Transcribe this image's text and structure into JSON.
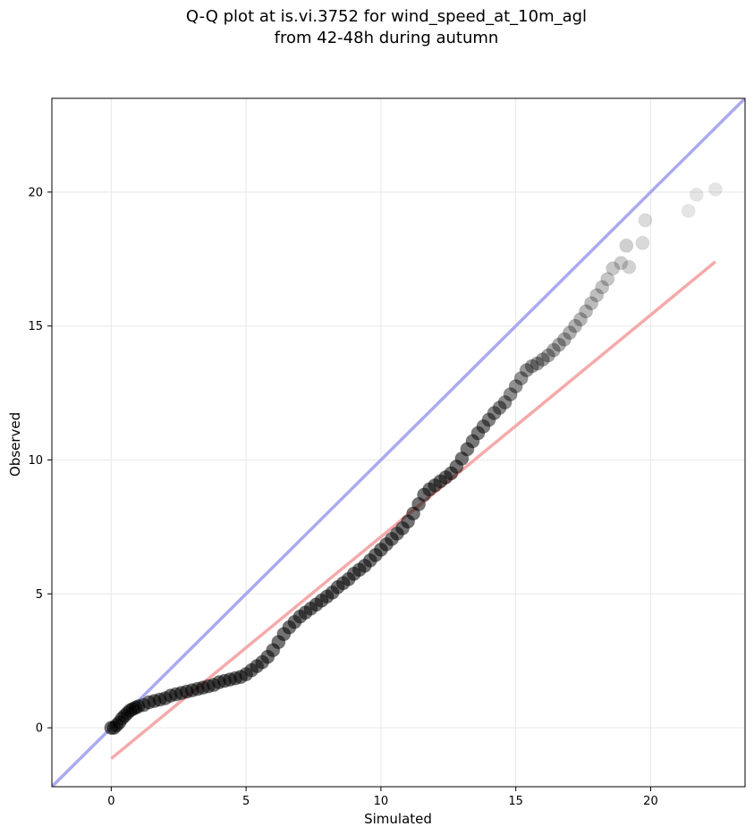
{
  "chart_data": {
    "type": "scatter",
    "title_lines": [
      "Q-Q plot at is.vi.3752 for wind_speed_at_10m_agl",
      "from 42-48h during autumn"
    ],
    "xlabel": "Simulated",
    "ylabel": "Observed",
    "xlim": [
      -2.2,
      23.5
    ],
    "ylim": [
      -2.2,
      23.5
    ],
    "xticks": [
      0,
      5,
      10,
      15,
      20
    ],
    "yticks": [
      0,
      5,
      10,
      15,
      20
    ],
    "grid": true,
    "colors": {
      "points": "#000000",
      "identity_line": "#aaaaf0",
      "fit_line": "#f5aaaa",
      "grid": "#ebebeb",
      "frame": "#000000"
    },
    "identity_line": {
      "x": [
        -2.2,
        23.5
      ],
      "y": [
        -2.2,
        23.5
      ]
    },
    "fit_line": {
      "x": [
        0.0,
        22.4
      ],
      "y": [
        -1.15,
        17.4
      ]
    },
    "series": [
      {
        "x": [
          0.0,
          0.1,
          0.2,
          0.3,
          0.4,
          0.5,
          0.6,
          0.7,
          0.8,
          0.9,
          1.0,
          1.2,
          1.4,
          1.6,
          1.8,
          2.0,
          2.2,
          2.4,
          2.6,
          2.8,
          3.0,
          3.2,
          3.4,
          3.6,
          3.8,
          4.0,
          4.2,
          4.4,
          4.6,
          4.8,
          5.0,
          5.2,
          5.4,
          5.6,
          5.8,
          6.0,
          6.2,
          6.4,
          6.6,
          6.8,
          7.0,
          7.2,
          7.4,
          7.6,
          7.8,
          8.0,
          8.2,
          8.4,
          8.6,
          8.8,
          9.0,
          9.2,
          9.4,
          9.6,
          9.8,
          10.0,
          10.2,
          10.4,
          10.6,
          10.8,
          11.0,
          11.2,
          11.4,
          11.6,
          11.8,
          12.0,
          12.2,
          12.4,
          12.6,
          12.8,
          13.0,
          13.2,
          13.4,
          13.6,
          13.8,
          14.0,
          14.2,
          14.4,
          14.6,
          14.8,
          15.0,
          15.2,
          15.4,
          15.6,
          15.8,
          16.0,
          16.2,
          16.4,
          16.6,
          16.8,
          17.0,
          17.2,
          17.4,
          17.6,
          17.8,
          18.0,
          18.2,
          18.4,
          18.6,
          18.9,
          19.1,
          19.2,
          19.7,
          19.8,
          21.4,
          21.7,
          22.4
        ],
        "y": [
          0.0,
          0.0,
          0.1,
          0.2,
          0.35,
          0.45,
          0.55,
          0.65,
          0.7,
          0.75,
          0.8,
          0.85,
          0.95,
          1.0,
          1.05,
          1.1,
          1.2,
          1.25,
          1.3,
          1.35,
          1.4,
          1.45,
          1.5,
          1.55,
          1.6,
          1.7,
          1.75,
          1.8,
          1.85,
          1.9,
          2.0,
          2.15,
          2.3,
          2.45,
          2.65,
          2.9,
          3.2,
          3.5,
          3.75,
          3.95,
          4.15,
          4.3,
          4.45,
          4.6,
          4.75,
          4.9,
          5.05,
          5.25,
          5.4,
          5.55,
          5.75,
          5.9,
          6.05,
          6.25,
          6.45,
          6.65,
          6.85,
          7.05,
          7.25,
          7.45,
          7.7,
          8.0,
          8.35,
          8.7,
          8.9,
          9.05,
          9.2,
          9.35,
          9.5,
          9.75,
          10.05,
          10.4,
          10.7,
          11.0,
          11.25,
          11.5,
          11.75,
          11.95,
          12.15,
          12.45,
          12.75,
          13.05,
          13.35,
          13.5,
          13.6,
          13.75,
          13.9,
          14.1,
          14.3,
          14.5,
          14.75,
          15.0,
          15.25,
          15.55,
          15.85,
          16.15,
          16.45,
          16.75,
          17.15,
          17.35,
          18.0,
          17.2,
          18.1,
          18.95,
          19.3,
          19.9,
          20.1
        ]
      }
    ]
  }
}
